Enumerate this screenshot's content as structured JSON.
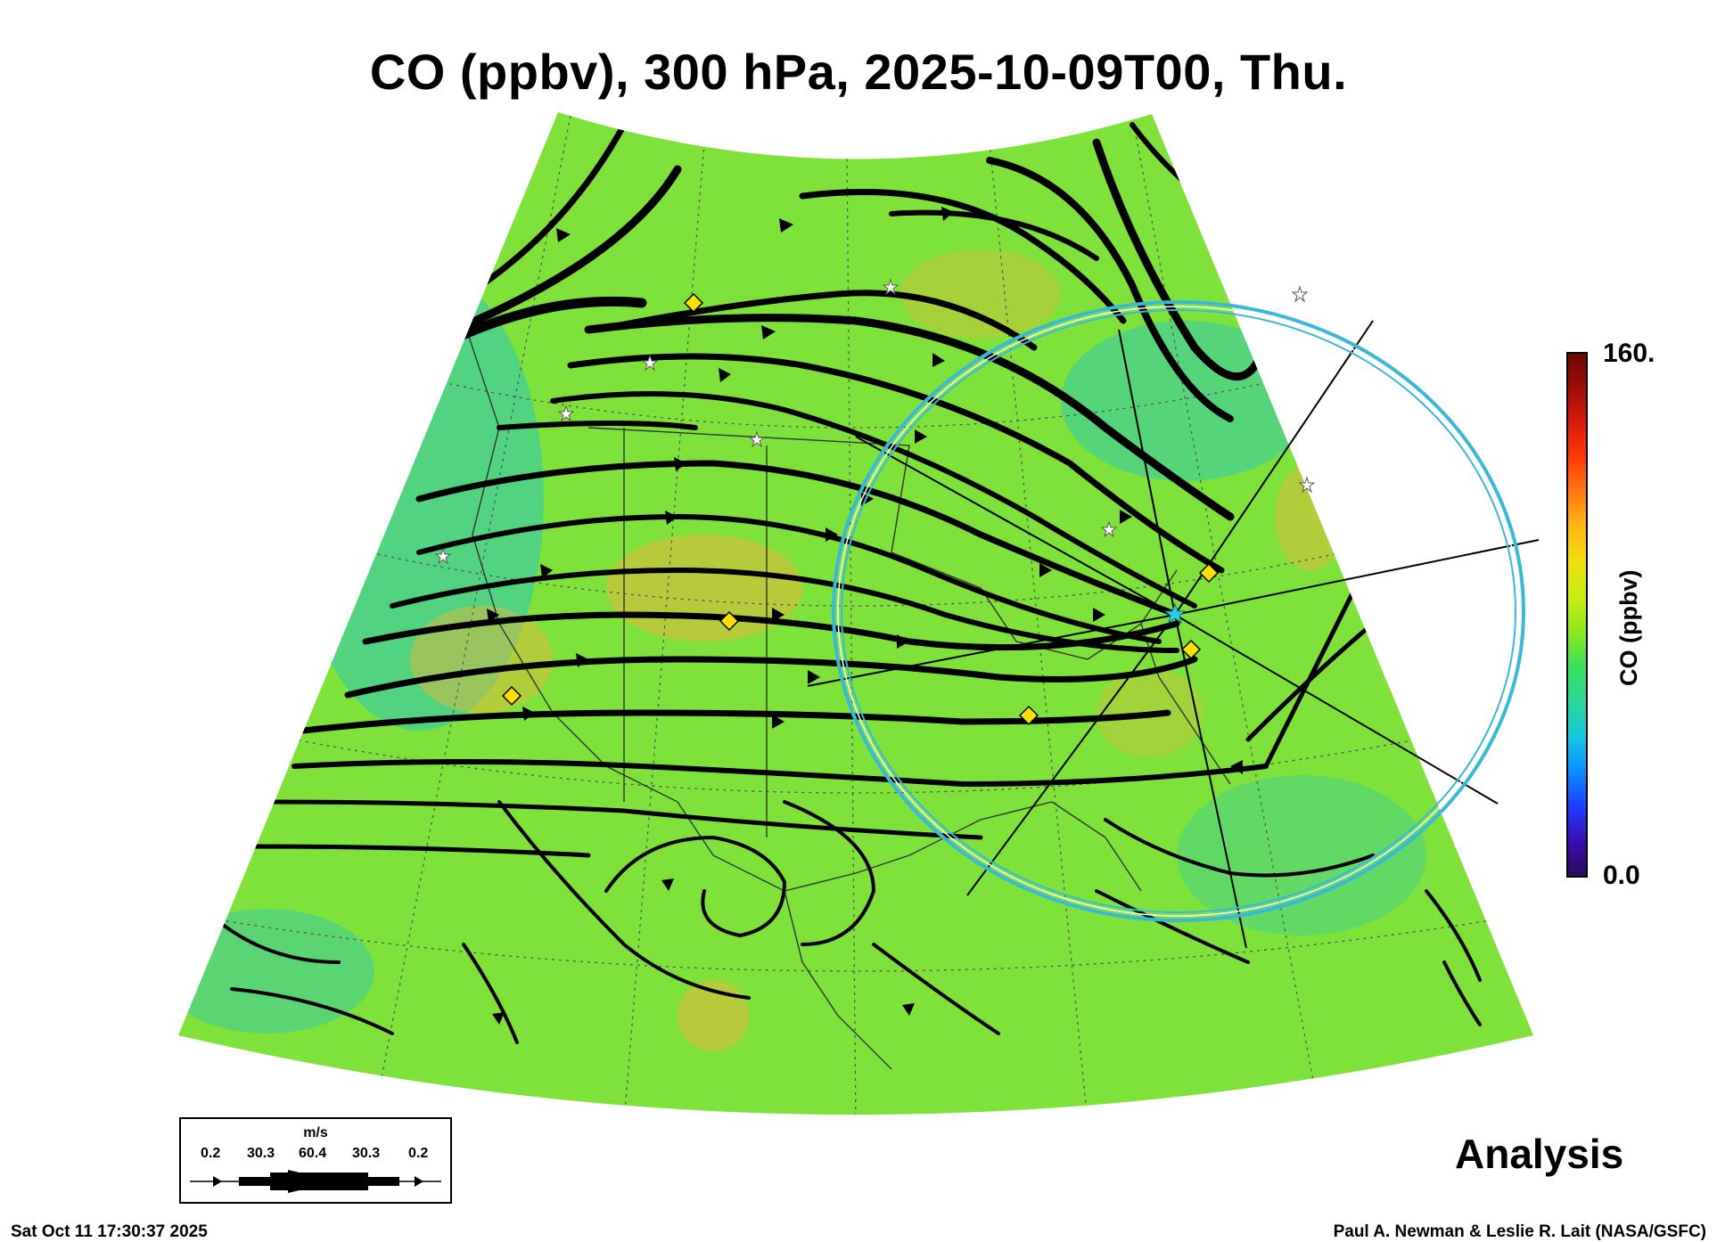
{
  "title": "CO (ppbv), 300 hPa, 2025-10-09T00, Thu.",
  "colorbar": {
    "max_label": "160.",
    "min_label": "0.0",
    "title": "CO (ppbv)",
    "colors": [
      "#2a0a5a",
      "#3b0cb0",
      "#1d3cff",
      "#0b8cff",
      "#14c8e0",
      "#2ad79b",
      "#38e05a",
      "#8de81e",
      "#c8ec10",
      "#f0e010",
      "#ffb812",
      "#ff7a12",
      "#ff3a0a",
      "#d81a0a",
      "#a00c06",
      "#6a0604"
    ]
  },
  "legend": {
    "units": "m/s",
    "ticks": [
      "0.2",
      "30.3",
      "60.4",
      "30.3",
      "0.2"
    ]
  },
  "analysis_label": "Analysis",
  "footer": {
    "timestamp": "Sat Oct 11 17:30:37 2025",
    "credit": "Paul A. Newman & Leslie R. Lait (NASA/GSFC)"
  },
  "map": {
    "field_base_color": "#7fe23a",
    "high_co_color": "#f0b43a",
    "low_co_color": "#2ec6b8",
    "streamline_color": "#000000",
    "ring_color": "#3ab8d8",
    "marker_diamond_color": "#ffe000",
    "marker_star_color": "#ffffff"
  }
}
